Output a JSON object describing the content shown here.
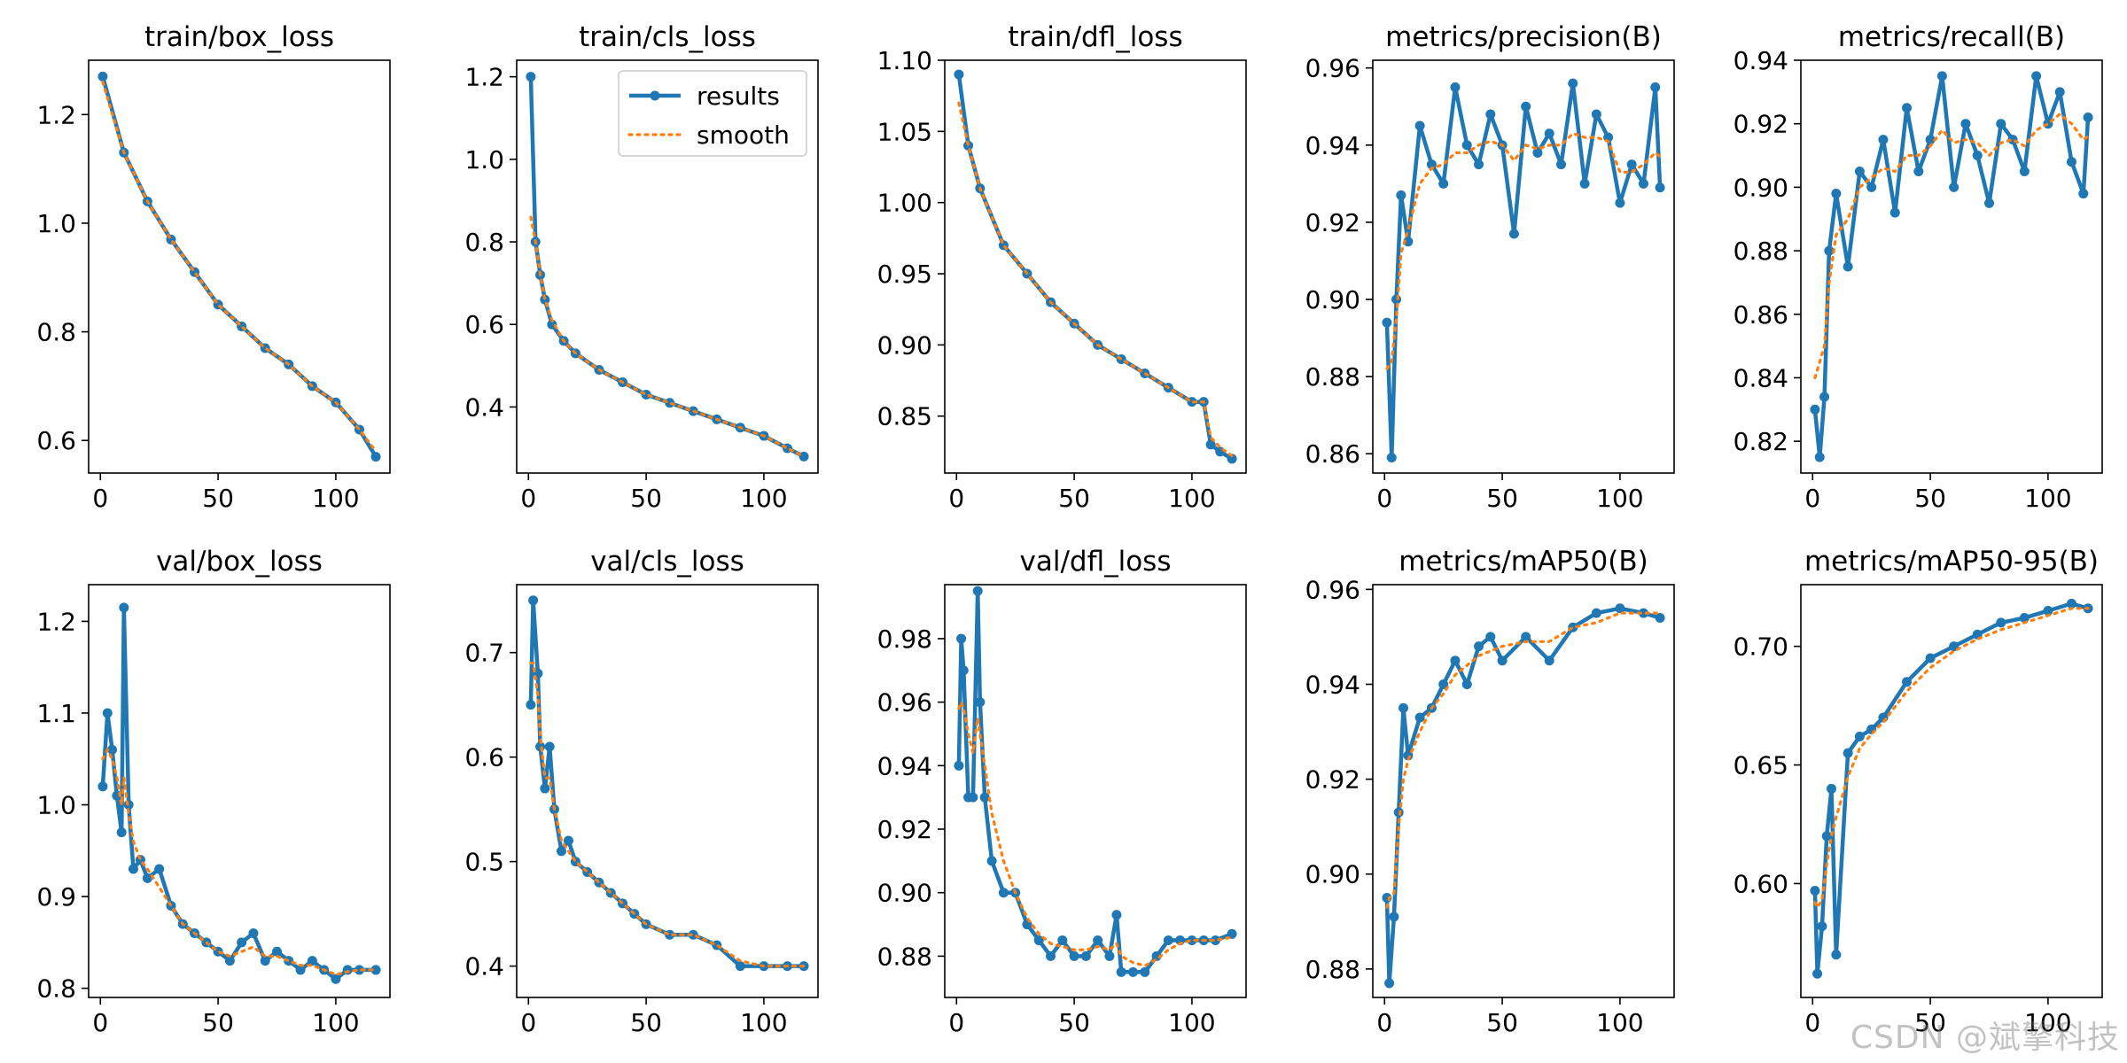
{
  "colors": {
    "results": "#1f77b4",
    "smooth": "#ff7f0e",
    "axes": "#000000",
    "background": "#ffffff"
  },
  "watermark": "CSDN @斌擎科技",
  "chart_data": [
    {
      "type": "line",
      "title": "train/box_loss",
      "xlim": [
        -5,
        123
      ],
      "ylim": [
        0.54,
        1.3
      ],
      "xticks": [
        0,
        50,
        100
      ],
      "yticks": [
        0.6,
        0.8,
        1.0,
        1.2
      ],
      "xtick_labels": [
        "0",
        "50",
        "100"
      ],
      "ytick_labels": [
        "0.6",
        "0.8",
        "1.0",
        "1.2"
      ],
      "x": [
        1,
        10,
        20,
        30,
        40,
        50,
        60,
        70,
        80,
        90,
        100,
        110,
        117
      ],
      "series": [
        {
          "name": "results",
          "values": [
            1.27,
            1.13,
            1.04,
            0.97,
            0.91,
            0.85,
            0.81,
            0.77,
            0.74,
            0.7,
            0.67,
            0.62,
            0.57
          ]
        },
        {
          "name": "smooth",
          "values": [
            1.26,
            1.13,
            1.04,
            0.97,
            0.91,
            0.85,
            0.81,
            0.77,
            0.74,
            0.7,
            0.67,
            0.62,
            0.58
          ]
        }
      ]
    },
    {
      "type": "line",
      "title": "train/cls_loss",
      "xlim": [
        -5,
        123
      ],
      "ylim": [
        0.24,
        1.24
      ],
      "xticks": [
        0,
        50,
        100
      ],
      "yticks": [
        0.4,
        0.6,
        0.8,
        1.0,
        1.2
      ],
      "xtick_labels": [
        "0",
        "50",
        "100"
      ],
      "ytick_labels": [
        "0.4",
        "0.6",
        "0.8",
        "1.0",
        "1.2"
      ],
      "x": [
        1,
        3,
        5,
        7,
        10,
        15,
        20,
        30,
        40,
        50,
        60,
        70,
        80,
        90,
        100,
        110,
        117
      ],
      "series": [
        {
          "name": "results",
          "values": [
            1.2,
            0.8,
            0.72,
            0.66,
            0.6,
            0.56,
            0.53,
            0.49,
            0.46,
            0.43,
            0.41,
            0.39,
            0.37,
            0.35,
            0.33,
            0.3,
            0.28
          ]
        },
        {
          "name": "smooth",
          "values": [
            0.86,
            0.8,
            0.72,
            0.66,
            0.61,
            0.56,
            0.53,
            0.49,
            0.46,
            0.43,
            0.41,
            0.39,
            0.37,
            0.35,
            0.33,
            0.3,
            0.28
          ]
        }
      ],
      "legend": {
        "location": "upper right",
        "entries": [
          "results",
          "smooth"
        ]
      }
    },
    {
      "type": "line",
      "title": "train/dfl_loss",
      "xlim": [
        -5,
        123
      ],
      "ylim": [
        0.81,
        1.1
      ],
      "xticks": [
        0,
        50,
        100
      ],
      "yticks": [
        0.85,
        0.9,
        0.95,
        1.0,
        1.05,
        1.1
      ],
      "xtick_labels": [
        "0",
        "50",
        "100"
      ],
      "ytick_labels": [
        "0.85",
        "0.90",
        "0.95",
        "1.00",
        "1.05",
        "1.10"
      ],
      "x": [
        1,
        5,
        10,
        20,
        30,
        40,
        50,
        60,
        70,
        80,
        90,
        100,
        105,
        108,
        112,
        117
      ],
      "series": [
        {
          "name": "results",
          "values": [
            1.09,
            1.04,
            1.01,
            0.97,
            0.95,
            0.93,
            0.915,
            0.9,
            0.89,
            0.88,
            0.87,
            0.86,
            0.86,
            0.83,
            0.825,
            0.82
          ]
        },
        {
          "name": "smooth",
          "values": [
            1.07,
            1.04,
            1.01,
            0.97,
            0.95,
            0.93,
            0.915,
            0.9,
            0.89,
            0.88,
            0.87,
            0.86,
            0.86,
            0.835,
            0.828,
            0.822
          ]
        }
      ]
    },
    {
      "type": "line",
      "title": "metrics/precision(B)",
      "xlim": [
        -5,
        123
      ],
      "ylim": [
        0.855,
        0.962
      ],
      "xticks": [
        0,
        50,
        100
      ],
      "yticks": [
        0.86,
        0.88,
        0.9,
        0.92,
        0.94,
        0.96
      ],
      "xtick_labels": [
        "0",
        "50",
        "100"
      ],
      "ytick_labels": [
        "0.86",
        "0.88",
        "0.90",
        "0.92",
        "0.94",
        "0.96"
      ],
      "x": [
        1,
        3,
        5,
        7,
        10,
        15,
        20,
        25,
        30,
        35,
        40,
        45,
        50,
        55,
        60,
        65,
        70,
        75,
        80,
        85,
        90,
        95,
        100,
        105,
        110,
        115,
        117
      ],
      "series": [
        {
          "name": "results",
          "values": [
            0.894,
            0.859,
            0.9,
            0.927,
            0.915,
            0.945,
            0.935,
            0.93,
            0.955,
            0.94,
            0.935,
            0.948,
            0.94,
            0.917,
            0.95,
            0.938,
            0.943,
            0.935,
            0.956,
            0.93,
            0.948,
            0.942,
            0.925,
            0.935,
            0.93,
            0.955,
            0.929
          ]
        },
        {
          "name": "smooth",
          "values": [
            0.882,
            0.884,
            0.895,
            0.912,
            0.918,
            0.93,
            0.934,
            0.935,
            0.938,
            0.938,
            0.94,
            0.941,
            0.94,
            0.936,
            0.94,
            0.939,
            0.94,
            0.94,
            0.943,
            0.942,
            0.942,
            0.941,
            0.933,
            0.933,
            0.935,
            0.938,
            0.937
          ]
        }
      ]
    },
    {
      "type": "line",
      "title": "metrics/recall(B)",
      "xlim": [
        -5,
        123
      ],
      "ylim": [
        0.81,
        0.94
      ],
      "xticks": [
        0,
        50,
        100
      ],
      "yticks": [
        0.82,
        0.84,
        0.86,
        0.88,
        0.9,
        0.92,
        0.94
      ],
      "xtick_labels": [
        "0",
        "50",
        "100"
      ],
      "ytick_labels": [
        "0.82",
        "0.84",
        "0.86",
        "0.88",
        "0.90",
        "0.92",
        "0.94"
      ],
      "x": [
        1,
        3,
        5,
        7,
        10,
        15,
        20,
        25,
        30,
        35,
        40,
        45,
        50,
        55,
        60,
        65,
        70,
        75,
        80,
        85,
        90,
        95,
        100,
        105,
        110,
        115,
        117
      ],
      "series": [
        {
          "name": "results",
          "values": [
            0.83,
            0.815,
            0.834,
            0.88,
            0.898,
            0.875,
            0.905,
            0.9,
            0.915,
            0.892,
            0.925,
            0.905,
            0.915,
            0.935,
            0.9,
            0.92,
            0.91,
            0.895,
            0.92,
            0.915,
            0.905,
            0.935,
            0.92,
            0.93,
            0.908,
            0.898,
            0.922
          ]
        },
        {
          "name": "smooth",
          "values": [
            0.84,
            0.845,
            0.85,
            0.87,
            0.885,
            0.89,
            0.9,
            0.903,
            0.906,
            0.905,
            0.91,
            0.91,
            0.913,
            0.918,
            0.914,
            0.915,
            0.914,
            0.91,
            0.914,
            0.915,
            0.913,
            0.918,
            0.92,
            0.923,
            0.92,
            0.915,
            0.916
          ]
        }
      ]
    },
    {
      "type": "line",
      "title": "val/box_loss",
      "xlim": [
        -5,
        123
      ],
      "ylim": [
        0.79,
        1.24
      ],
      "xticks": [
        0,
        50,
        100
      ],
      "yticks": [
        0.8,
        0.9,
        1.0,
        1.1,
        1.2
      ],
      "xtick_labels": [
        "0",
        "50",
        "100"
      ],
      "ytick_labels": [
        "0.8",
        "0.9",
        "1.0",
        "1.1",
        "1.2"
      ],
      "x": [
        1,
        3,
        5,
        7,
        9,
        10,
        12,
        14,
        17,
        20,
        25,
        30,
        35,
        40,
        45,
        50,
        55,
        60,
        65,
        70,
        75,
        80,
        85,
        90,
        95,
        100,
        105,
        110,
        117
      ],
      "series": [
        {
          "name": "results",
          "values": [
            1.02,
            1.1,
            1.06,
            1.01,
            0.97,
            1.215,
            1.0,
            0.93,
            0.94,
            0.92,
            0.93,
            0.89,
            0.87,
            0.86,
            0.85,
            0.84,
            0.83,
            0.85,
            0.86,
            0.83,
            0.84,
            0.83,
            0.82,
            0.83,
            0.82,
            0.81,
            0.82,
            0.82,
            0.82
          ]
        },
        {
          "name": "smooth",
          "values": [
            1.05,
            1.06,
            1.05,
            1.03,
            1.0,
            1.03,
            0.99,
            0.96,
            0.94,
            0.93,
            0.91,
            0.89,
            0.87,
            0.86,
            0.85,
            0.84,
            0.835,
            0.84,
            0.845,
            0.835,
            0.835,
            0.83,
            0.825,
            0.825,
            0.82,
            0.815,
            0.818,
            0.82,
            0.82
          ]
        }
      ]
    },
    {
      "type": "line",
      "title": "val/cls_loss",
      "xlim": [
        -5,
        123
      ],
      "ylim": [
        0.37,
        0.765
      ],
      "xticks": [
        0,
        50,
        100
      ],
      "yticks": [
        0.4,
        0.5,
        0.6,
        0.7
      ],
      "xtick_labels": [
        "0",
        "50",
        "100"
      ],
      "ytick_labels": [
        "0.4",
        "0.5",
        "0.6",
        "0.7"
      ],
      "x": [
        1,
        2,
        4,
        5,
        7,
        9,
        11,
        14,
        17,
        20,
        25,
        30,
        35,
        40,
        45,
        50,
        60,
        70,
        80,
        90,
        100,
        110,
        117
      ],
      "series": [
        {
          "name": "results",
          "values": [
            0.65,
            0.75,
            0.68,
            0.61,
            0.57,
            0.61,
            0.55,
            0.51,
            0.52,
            0.5,
            0.49,
            0.48,
            0.47,
            0.46,
            0.45,
            0.44,
            0.43,
            0.43,
            0.42,
            0.4,
            0.4,
            0.4,
            0.4
          ]
        },
        {
          "name": "smooth",
          "values": [
            0.69,
            0.69,
            0.66,
            0.62,
            0.58,
            0.58,
            0.55,
            0.52,
            0.51,
            0.5,
            0.49,
            0.48,
            0.47,
            0.46,
            0.45,
            0.44,
            0.43,
            0.43,
            0.42,
            0.405,
            0.4,
            0.4,
            0.4
          ]
        }
      ]
    },
    {
      "type": "line",
      "title": "val/dfl_loss",
      "xlim": [
        -5,
        123
      ],
      "ylim": [
        0.867,
        0.997
      ],
      "xticks": [
        0,
        50,
        100
      ],
      "yticks": [
        0.88,
        0.9,
        0.92,
        0.94,
        0.96,
        0.98
      ],
      "xtick_labels": [
        "0",
        "50",
        "100"
      ],
      "ytick_labels": [
        "0.88",
        "0.90",
        "0.92",
        "0.94",
        "0.96",
        "0.98"
      ],
      "x": [
        1,
        2,
        3,
        5,
        7,
        9,
        10,
        12,
        15,
        20,
        25,
        30,
        35,
        40,
        45,
        50,
        55,
        60,
        65,
        68,
        70,
        75,
        80,
        85,
        90,
        95,
        100,
        105,
        110,
        117
      ],
      "series": [
        {
          "name": "results",
          "values": [
            0.94,
            0.98,
            0.97,
            0.93,
            0.93,
            0.995,
            0.96,
            0.93,
            0.91,
            0.9,
            0.9,
            0.89,
            0.885,
            0.88,
            0.885,
            0.88,
            0.88,
            0.885,
            0.88,
            0.893,
            0.875,
            0.875,
            0.875,
            0.88,
            0.885,
            0.885,
            0.885,
            0.885,
            0.885,
            0.887
          ]
        },
        {
          "name": "smooth",
          "values": [
            0.958,
            0.96,
            0.958,
            0.95,
            0.944,
            0.955,
            0.95,
            0.94,
            0.925,
            0.91,
            0.9,
            0.892,
            0.887,
            0.884,
            0.883,
            0.882,
            0.882,
            0.883,
            0.882,
            0.884,
            0.88,
            0.878,
            0.877,
            0.879,
            0.882,
            0.884,
            0.885,
            0.885,
            0.885,
            0.886
          ]
        }
      ]
    },
    {
      "type": "line",
      "title": "metrics/mAP50(B)",
      "xlim": [
        -5,
        123
      ],
      "ylim": [
        0.874,
        0.961
      ],
      "xticks": [
        0,
        50,
        100
      ],
      "yticks": [
        0.88,
        0.9,
        0.92,
        0.94,
        0.96
      ],
      "xtick_labels": [
        "0",
        "50",
        "100"
      ],
      "ytick_labels": [
        "0.88",
        "0.90",
        "0.92",
        "0.94",
        "0.96"
      ],
      "x": [
        1,
        2,
        4,
        6,
        8,
        10,
        15,
        20,
        25,
        30,
        35,
        40,
        45,
        50,
        60,
        70,
        80,
        90,
        100,
        110,
        117
      ],
      "series": [
        {
          "name": "results",
          "values": [
            0.895,
            0.877,
            0.891,
            0.913,
            0.935,
            0.925,
            0.933,
            0.935,
            0.94,
            0.945,
            0.94,
            0.948,
            0.95,
            0.945,
            0.95,
            0.945,
            0.952,
            0.955,
            0.956,
            0.955,
            0.954
          ]
        },
        {
          "name": "smooth",
          "values": [
            0.893,
            0.895,
            0.896,
            0.91,
            0.92,
            0.924,
            0.93,
            0.935,
            0.938,
            0.942,
            0.944,
            0.946,
            0.947,
            0.948,
            0.949,
            0.949,
            0.952,
            0.953,
            0.955,
            0.955,
            0.955
          ]
        }
      ]
    },
    {
      "type": "line",
      "title": "metrics/mAP50-95(B)",
      "xlim": [
        -5,
        123
      ],
      "ylim": [
        0.552,
        0.726
      ],
      "xticks": [
        0,
        50,
        100
      ],
      "yticks": [
        0.6,
        0.65,
        0.7
      ],
      "xtick_labels": [
        "0",
        "50",
        "100"
      ],
      "ytick_labels": [
        "0.60",
        "0.65",
        "0.70"
      ],
      "x": [
        1,
        2,
        4,
        6,
        8,
        10,
        15,
        20,
        25,
        30,
        40,
        50,
        60,
        70,
        80,
        90,
        100,
        110,
        117
      ],
      "series": [
        {
          "name": "results",
          "values": [
            0.597,
            0.562,
            0.582,
            0.62,
            0.64,
            0.57,
            0.655,
            0.662,
            0.665,
            0.67,
            0.685,
            0.695,
            0.7,
            0.705,
            0.71,
            0.712,
            0.715,
            0.718,
            0.716
          ]
        },
        {
          "name": "smooth",
          "values": [
            0.592,
            0.59,
            0.593,
            0.608,
            0.62,
            0.628,
            0.645,
            0.657,
            0.663,
            0.668,
            0.681,
            0.691,
            0.698,
            0.703,
            0.707,
            0.71,
            0.713,
            0.716,
            0.716
          ]
        }
      ]
    }
  ]
}
